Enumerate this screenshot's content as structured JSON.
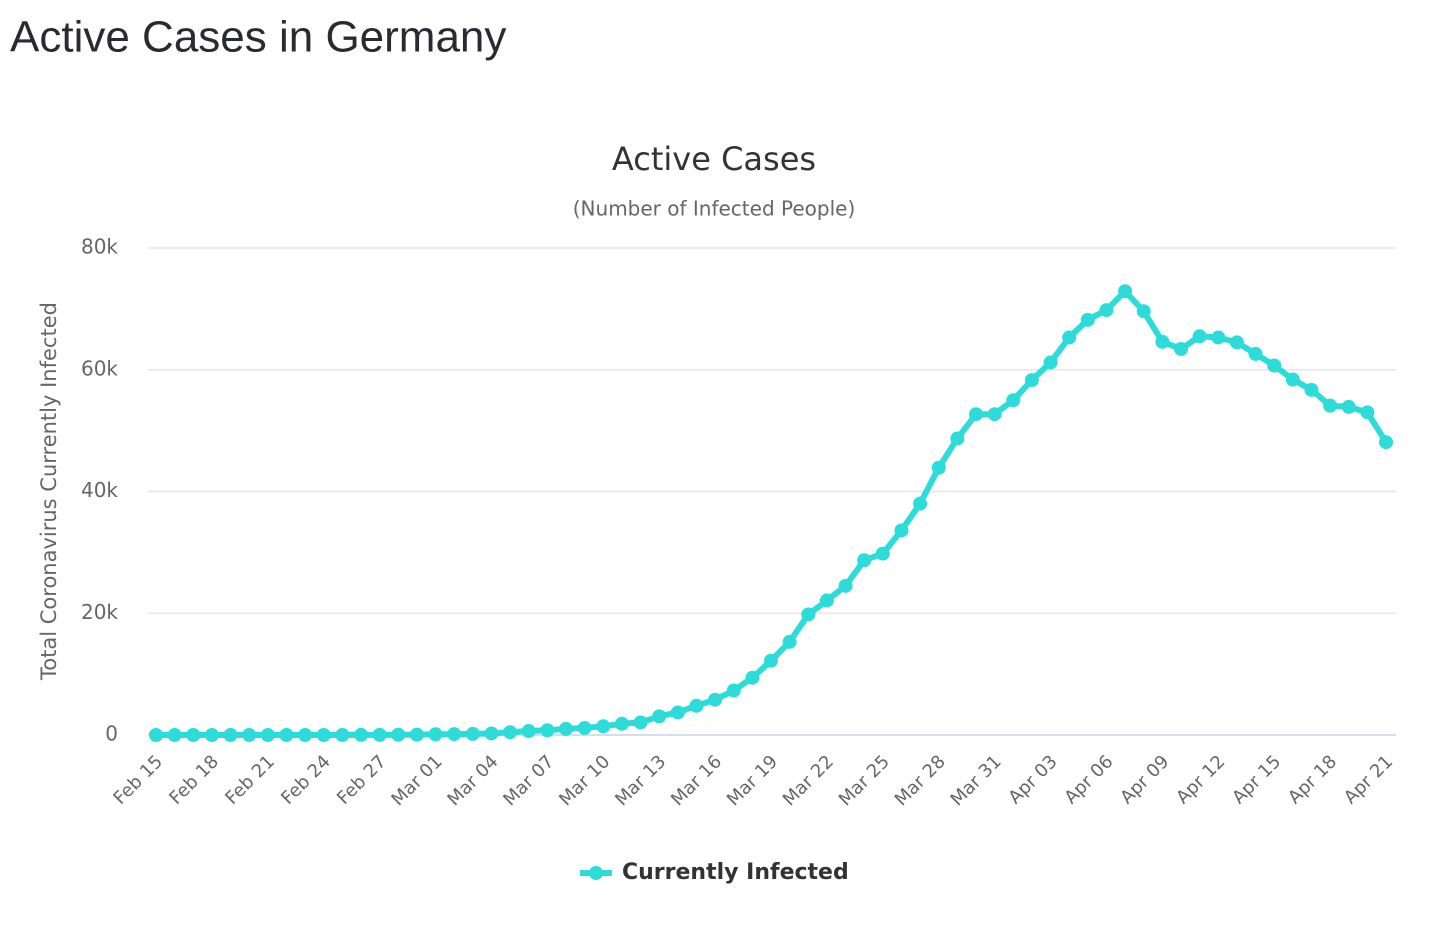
{
  "header": {
    "title": "Active Cases in Germany"
  },
  "chart_data": {
    "type": "line",
    "title": "Active Cases",
    "subtitle": "(Number of Infected People)",
    "y_label": "Total Coronavirus Currently Infected",
    "categories": [
      "Feb 15",
      null,
      null,
      "Feb 18",
      null,
      null,
      "Feb 21",
      null,
      null,
      "Feb 24",
      null,
      null,
      "Feb 27",
      null,
      null,
      "Mar 01",
      null,
      null,
      "Mar 04",
      null,
      null,
      "Mar 07",
      null,
      null,
      "Mar 10",
      null,
      null,
      "Mar 13",
      null,
      null,
      "Mar 16",
      null,
      null,
      "Mar 19",
      null,
      null,
      "Mar 22",
      null,
      null,
      "Mar 25",
      null,
      null,
      "Mar 28",
      null,
      null,
      "Mar 31",
      null,
      null,
      "Apr 03",
      null,
      null,
      "Apr 06",
      null,
      null,
      "Apr 09",
      null,
      null,
      "Apr 12",
      null,
      null,
      "Apr 15",
      null,
      null,
      "Apr 18",
      null,
      null,
      "Apr 21"
    ],
    "series": [
      {
        "name": "Currently Infected",
        "color": "#2ddcd8",
        "values": [
          2,
          2,
          2,
          2,
          2,
          2,
          2,
          2,
          2,
          2,
          2,
          14,
          27,
          40,
          52,
          115,
          150,
          180,
          250,
          460,
          650,
          780,
          1000,
          1160,
          1430,
          1840,
          2060,
          3060,
          3700,
          4800,
          5800,
          7300,
          9400,
          12200,
          15300,
          19800,
          22100,
          24500,
          28700,
          29800,
          33600,
          38000,
          43900,
          48700,
          52700,
          52700,
          55000,
          58300,
          61200,
          65300,
          68200,
          69800,
          72900,
          69600,
          64600,
          63400,
          65500,
          65300,
          64500,
          62600,
          60700,
          58400,
          56700,
          54100,
          53900,
          53000,
          48100
        ]
      }
    ],
    "ylim": [
      0,
      80000
    ],
    "yticks": [
      0,
      {
        "value": 20000,
        "label": "20k"
      },
      {
        "value": 40000,
        "label": "40k"
      },
      {
        "value": 60000,
        "label": "60k"
      },
      {
        "value": 80000,
        "label": "80k"
      }
    ],
    "grid": true,
    "legend": "bottom"
  }
}
